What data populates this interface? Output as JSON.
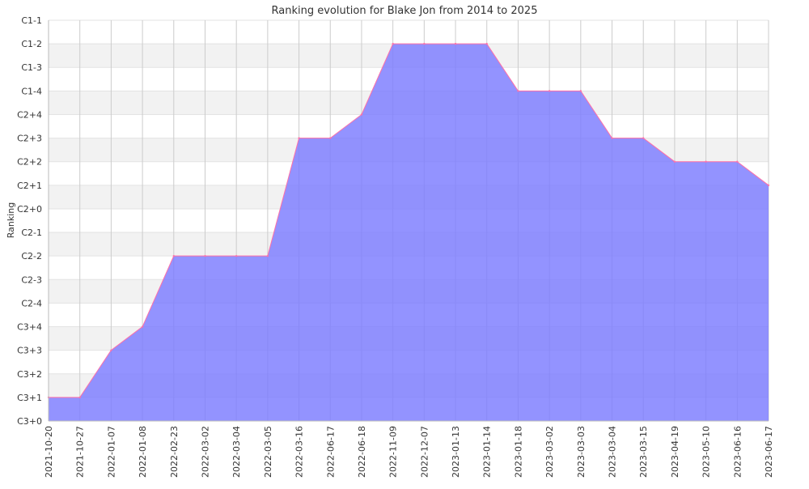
{
  "chart_data": {
    "type": "area",
    "title": "Ranking evolution for Blake Jon from 2014 to 2025",
    "xlabel": "",
    "ylabel": "Ranking",
    "y_categories": [
      "C3+0",
      "C3+1",
      "C3+2",
      "C3+3",
      "C3+4",
      "C2-4",
      "C2-3",
      "C2-2",
      "C2-1",
      "C2+0",
      "C2+1",
      "C2+2",
      "C2+3",
      "C2+4",
      "C1-4",
      "C1-3",
      "C1-2",
      "C1-1"
    ],
    "x": [
      "2021-10-20",
      "2021-10-27",
      "2022-01-07",
      "2022-01-08",
      "2022-02-23",
      "2022-03-02",
      "2022-03-04",
      "2022-03-05",
      "2022-03-16",
      "2022-06-17",
      "2022-06-18",
      "2022-11-09",
      "2022-12-07",
      "2023-01-13",
      "2023-01-14",
      "2023-01-18",
      "2023-03-02",
      "2023-03-03",
      "2023-03-04",
      "2023-03-15",
      "2023-04-19",
      "2023-05-10",
      "2023-06-16",
      "2023-06-17"
    ],
    "series": [
      {
        "values": [
          "C3+1",
          "C3+1",
          "C3+3",
          "C3+4",
          "C2-2",
          "C2-2",
          "C2-2",
          "C2-2",
          "C2+3",
          "C2+3",
          "C2+4",
          "C1-2",
          "C1-2",
          "C1-2",
          "C1-2",
          "C1-4",
          "C1-4",
          "C1-4",
          "C2+3",
          "C2+3",
          "C2+2",
          "C2+2",
          "C2+2",
          "C2+1"
        ]
      }
    ],
    "grid": true,
    "legend": "none",
    "colors": {
      "fill": "#7b7bff",
      "line": "#ff6fa8",
      "band": "#f2f2f2",
      "grid": "#cccccc"
    }
  }
}
